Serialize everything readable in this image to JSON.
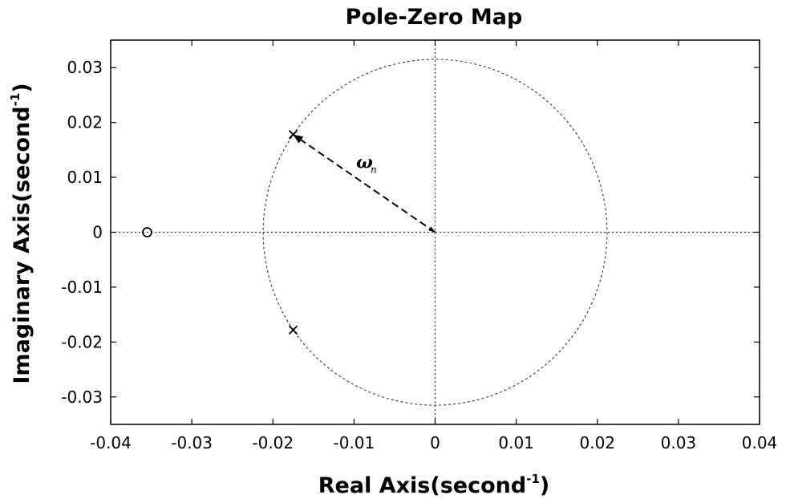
{
  "chart_data": {
    "type": "scatter",
    "title": "Pole-Zero Map",
    "xlabel": {
      "main": "Real Axis(second",
      "sup": "-1",
      "close": ")"
    },
    "ylabel": {
      "main": "Imaginary Axis(second",
      "sup": "-1",
      "close": ")"
    },
    "xlim": [
      -0.04,
      0.04
    ],
    "ylim": [
      -0.035,
      0.035
    ],
    "xticks": [
      -0.04,
      -0.03,
      -0.02,
      -0.01,
      0,
      0.01,
      0.02,
      0.03,
      0.04
    ],
    "xtick_labels": [
      "-0.04",
      "-0.03",
      "-0.02",
      "-0.01",
      "0",
      "0.01",
      "0.02",
      "0.03",
      "0.04"
    ],
    "yticks": [
      0.03,
      0.02,
      0.01,
      0,
      -0.01,
      -0.02,
      -0.03
    ],
    "ytick_labels": [
      "0.03",
      "0.02",
      "0.01",
      "0",
      "-0.01",
      "-0.02",
      "-0.03"
    ],
    "poles": [
      {
        "x": -0.0175,
        "y": 0.0178
      },
      {
        "x": -0.0175,
        "y": -0.0178
      }
    ],
    "zeros": [
      {
        "x": -0.0355,
        "y": 0.0
      }
    ],
    "natural_frequency_circle": {
      "center": [
        0,
        0
      ],
      "radius_x": 0.0212,
      "radius_y": 0.0315,
      "style": "dashed"
    },
    "reference_lines": [
      "x=0",
      "y=0"
    ],
    "grid": false,
    "annotation": {
      "label": "ω",
      "subscript": "n",
      "from": [
        0,
        0
      ],
      "to": [
        -0.0175,
        0.0178
      ]
    }
  }
}
